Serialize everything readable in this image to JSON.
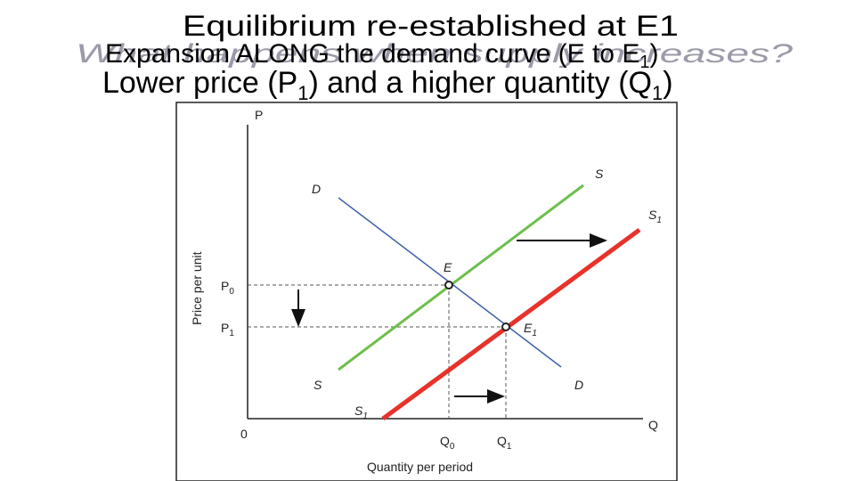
{
  "slide": {
    "background_title": "What happens when supply increases?",
    "title_line1": "Equilibrium re-established at E1",
    "title_line2": {
      "before": "Expansion ALONG the demand curve (E to E",
      "sub": "1",
      "after": ")"
    },
    "title_line3": {
      "part1": "Lower price (P",
      "sub1": "1",
      "part2": ") and a higher quantity (Q",
      "sub2": "1",
      "part3": ")"
    }
  },
  "diagram": {
    "y_axis_symbol": "P",
    "x_axis_symbol": "Q",
    "origin": "0",
    "y_axis_title": "Price per unit",
    "x_axis_title": "Quantity per period",
    "demand_top": "D",
    "demand_bottom": "D",
    "supply_top": "S",
    "supply_bottom": "S",
    "supply1_top": {
      "base": "S",
      "sub": "1"
    },
    "supply1_bottom": {
      "base": "S",
      "sub": "1"
    },
    "equilibrium": "E",
    "equilibrium1": {
      "base": "E",
      "sub": "1"
    },
    "p0": {
      "base": "P",
      "sub": "0"
    },
    "p1": {
      "base": "P",
      "sub": "1"
    },
    "q0": {
      "base": "Q",
      "sub": "0"
    },
    "q1": {
      "base": "Q",
      "sub": "1"
    }
  }
}
